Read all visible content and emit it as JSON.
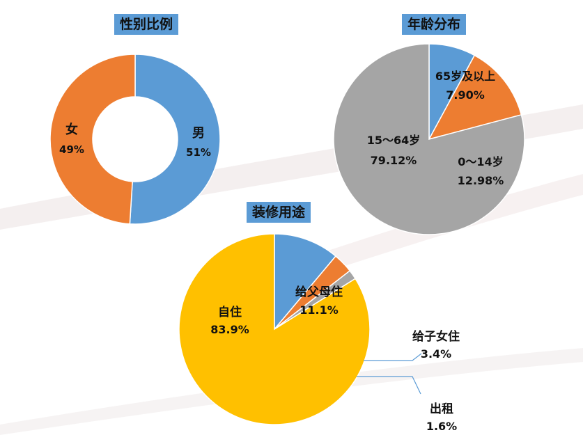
{
  "chart_data": [
    {
      "type": "pie",
      "donut": true,
      "title": "性别比例",
      "slices": [
        {
          "label": "男",
          "value": 51,
          "value_label": "51%",
          "color": "#5b9bd5"
        },
        {
          "label": "女",
          "value": 49,
          "value_label": "49%",
          "color": "#ed7d31"
        }
      ]
    },
    {
      "type": "pie",
      "title": "年龄分布",
      "slices": [
        {
          "label": "65岁及以上",
          "value": 7.9,
          "value_label": "7.90%",
          "color": "#5b9bd5"
        },
        {
          "label": "0～14岁",
          "value": 12.98,
          "value_label": "12.98%",
          "color": "#ed7d31"
        },
        {
          "label": "15～64岁",
          "value": 79.12,
          "value_label": "79.12%",
          "color": "#a5a5a5"
        }
      ]
    },
    {
      "type": "pie",
      "title": "装修用途",
      "slices": [
        {
          "label": "给父母住",
          "value": 11.1,
          "value_label": "11.1%",
          "color": "#5b9bd5"
        },
        {
          "label": "给子女住",
          "value": 3.4,
          "value_label": "3.4%",
          "color": "#ed7d31"
        },
        {
          "label": "出租",
          "value": 1.6,
          "value_label": "1.6%",
          "color": "#a5a5a5"
        },
        {
          "label": "自住",
          "value": 83.9,
          "value_label": "83.9%",
          "color": "#ffc000"
        }
      ]
    }
  ]
}
